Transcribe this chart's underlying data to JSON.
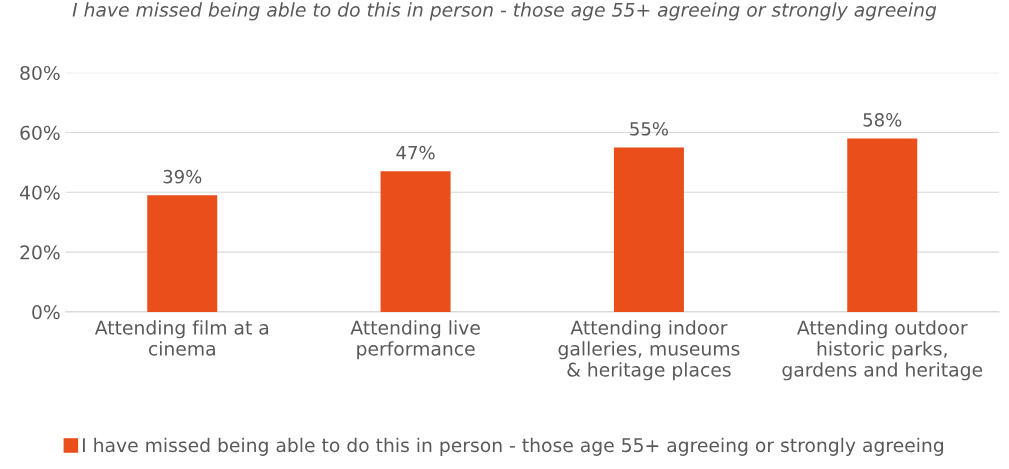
{
  "chart_data": {
    "type": "bar",
    "title": "I have missed being able to do this in person - those age 55+ agreeing or strongly agreeing",
    "categories": [
      "Attending film at a\ncinema",
      "Attending live\nperformance",
      "Attending indoor\ngalleries, museums\n& heritage places",
      "Attending outdoor\nhistoric parks,\ngardens and heritage"
    ],
    "series": [
      {
        "name": "I have missed being able to do this in person - those age 55+ agreeing or strongly agreeing",
        "color": "#e94e1b",
        "values": [
          39,
          47,
          55,
          58
        ],
        "value_labels": [
          "39%",
          "47%",
          "55%",
          "58%"
        ]
      }
    ],
    "ylim": [
      0,
      80
    ],
    "yticks": [
      {
        "value": 0,
        "label": "0%"
      },
      {
        "value": 20,
        "label": "20%"
      },
      {
        "value": 40,
        "label": "40%"
      },
      {
        "value": 60,
        "label": "60%"
      },
      {
        "value": 80,
        "label": "80%"
      }
    ],
    "grid": "y",
    "legend": "bottom"
  }
}
